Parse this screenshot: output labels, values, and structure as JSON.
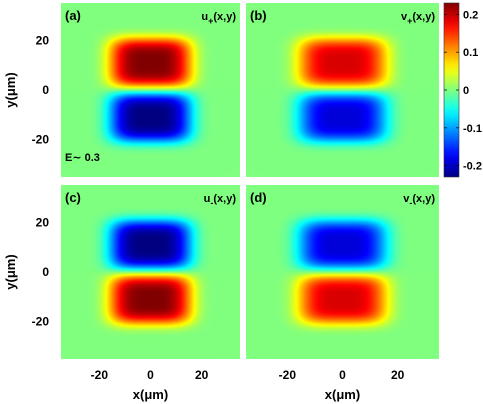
{
  "chart_data": {
    "type": "heatmap",
    "panels": [
      {
        "id": "a",
        "letter": "(a)",
        "label_main": "u",
        "label_sub": "+",
        "label_args": "(x,y)",
        "amplitude": 0.23,
        "center_y_um": 0,
        "annotation": "E∼ 0.3"
      },
      {
        "id": "b",
        "letter": "(b)",
        "label_main": "v",
        "label_sub": "+",
        "label_args": "(x,y)",
        "amplitude": 0.19,
        "center_y_um": 0,
        "annotation": ""
      },
      {
        "id": "c",
        "letter": "(c)",
        "label_main": "u",
        "label_sub": "-",
        "label_args": "(x,y)",
        "amplitude": -0.23,
        "center_y_um": 0,
        "annotation": ""
      },
      {
        "id": "d",
        "letter": "(d)",
        "label_main": "v",
        "label_sub": "-",
        "label_args": "(x,y)",
        "amplitude": -0.19,
        "center_y_um": 0,
        "annotation": ""
      }
    ],
    "lobes": {
      "upper_peak_y_um": 11,
      "lower_peak_y_um": -11,
      "lobe_half_width_x_um": 16,
      "lobe_half_height_y_um": 10
    },
    "xlabel": "x(μm)",
    "ylabel": "y(μm)",
    "xlim": [
      -35,
      35
    ],
    "ylim": [
      -35,
      35
    ],
    "xticks": [
      -20,
      0,
      20
    ],
    "yticks": [
      20,
      0,
      -20
    ],
    "xtick_labels": [
      "-20",
      "0",
      "20"
    ],
    "ytick_labels": [
      "20",
      "0",
      "-20"
    ],
    "colorbar": {
      "min": -0.23,
      "max": 0.23,
      "ticks": [
        0.2,
        0.1,
        0,
        -0.1,
        -0.2
      ],
      "tick_labels": [
        "0.2",
        "0.1",
        "0",
        "-0.1",
        "-0.2"
      ],
      "colormap": "jet"
    },
    "background_color": "#80ff80"
  }
}
